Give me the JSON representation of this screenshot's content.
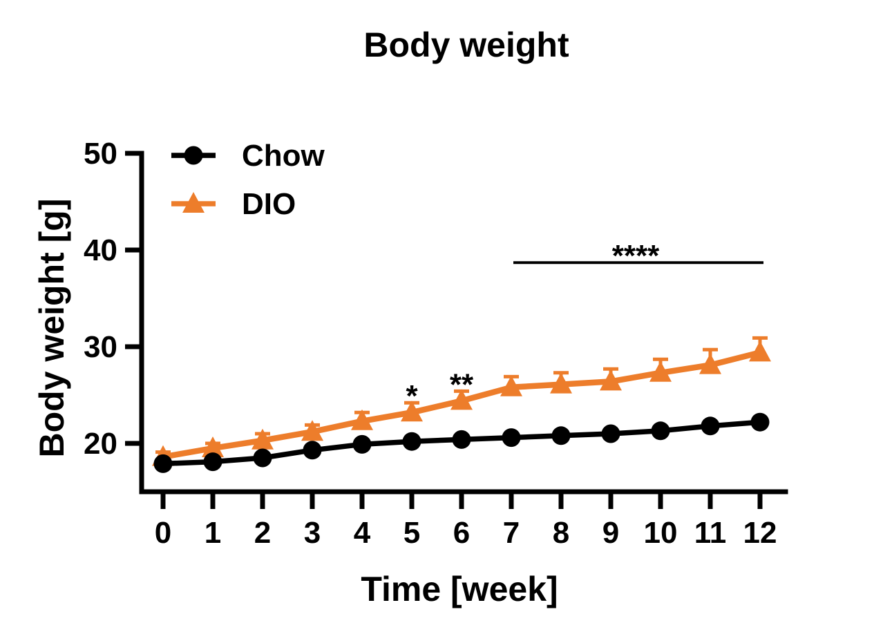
{
  "figure": {
    "title": "Body weight",
    "background_color": "#FFFFFF",
    "axis_color": "#000000"
  },
  "legend": {
    "position": "inside-top-left",
    "items": [
      {
        "label": "Chow",
        "color": "#000000",
        "marker": "circle"
      },
      {
        "label": "DIO",
        "color": "#ED7D2B",
        "marker": "triangle-up"
      }
    ]
  },
  "chart_data": {
    "type": "line",
    "title": "Body weight",
    "xlabel": "Time [week]",
    "ylabel": "Body weight [g]",
    "x": [
      0,
      1,
      2,
      3,
      4,
      5,
      6,
      7,
      8,
      9,
      10,
      11,
      12
    ],
    "x_ticks": [
      0,
      1,
      2,
      3,
      4,
      5,
      6,
      7,
      8,
      9,
      10,
      11,
      12
    ],
    "y_ticks": [
      20,
      30,
      40,
      50
    ],
    "ylim": [
      15,
      50
    ],
    "xlim": [
      -0.45,
      13
    ],
    "grid": false,
    "error_bars": "upper-only",
    "legend_position": "inside-top-left",
    "series": [
      {
        "name": "Chow",
        "color": "#000000",
        "marker": "circle",
        "values": [
          17.9,
          18.1,
          18.5,
          19.3,
          19.9,
          20.2,
          20.4,
          20.6,
          20.8,
          21.0,
          21.3,
          21.8,
          22.2
        ],
        "errors": [
          0.2,
          0.2,
          0.2,
          0.2,
          0.2,
          0.2,
          0.2,
          0.2,
          0.2,
          0.2,
          0.2,
          0.2,
          0.2
        ]
      },
      {
        "name": "DIO",
        "color": "#ED7D2B",
        "marker": "triangle-up",
        "values": [
          18.6,
          19.5,
          20.3,
          21.2,
          22.3,
          23.2,
          24.4,
          25.8,
          26.1,
          26.4,
          27.3,
          28.1,
          29.4
        ],
        "errors": [
          0.5,
          0.5,
          0.7,
          0.7,
          0.9,
          1.0,
          1.0,
          1.1,
          1.2,
          1.3,
          1.4,
          1.6,
          1.5
        ]
      }
    ],
    "significance": [
      {
        "label": "*",
        "week": 5
      },
      {
        "label": "**",
        "week": 6
      },
      {
        "label": "****",
        "from_week": 7,
        "to_week": 12,
        "bar_y": 38.7
      }
    ]
  }
}
